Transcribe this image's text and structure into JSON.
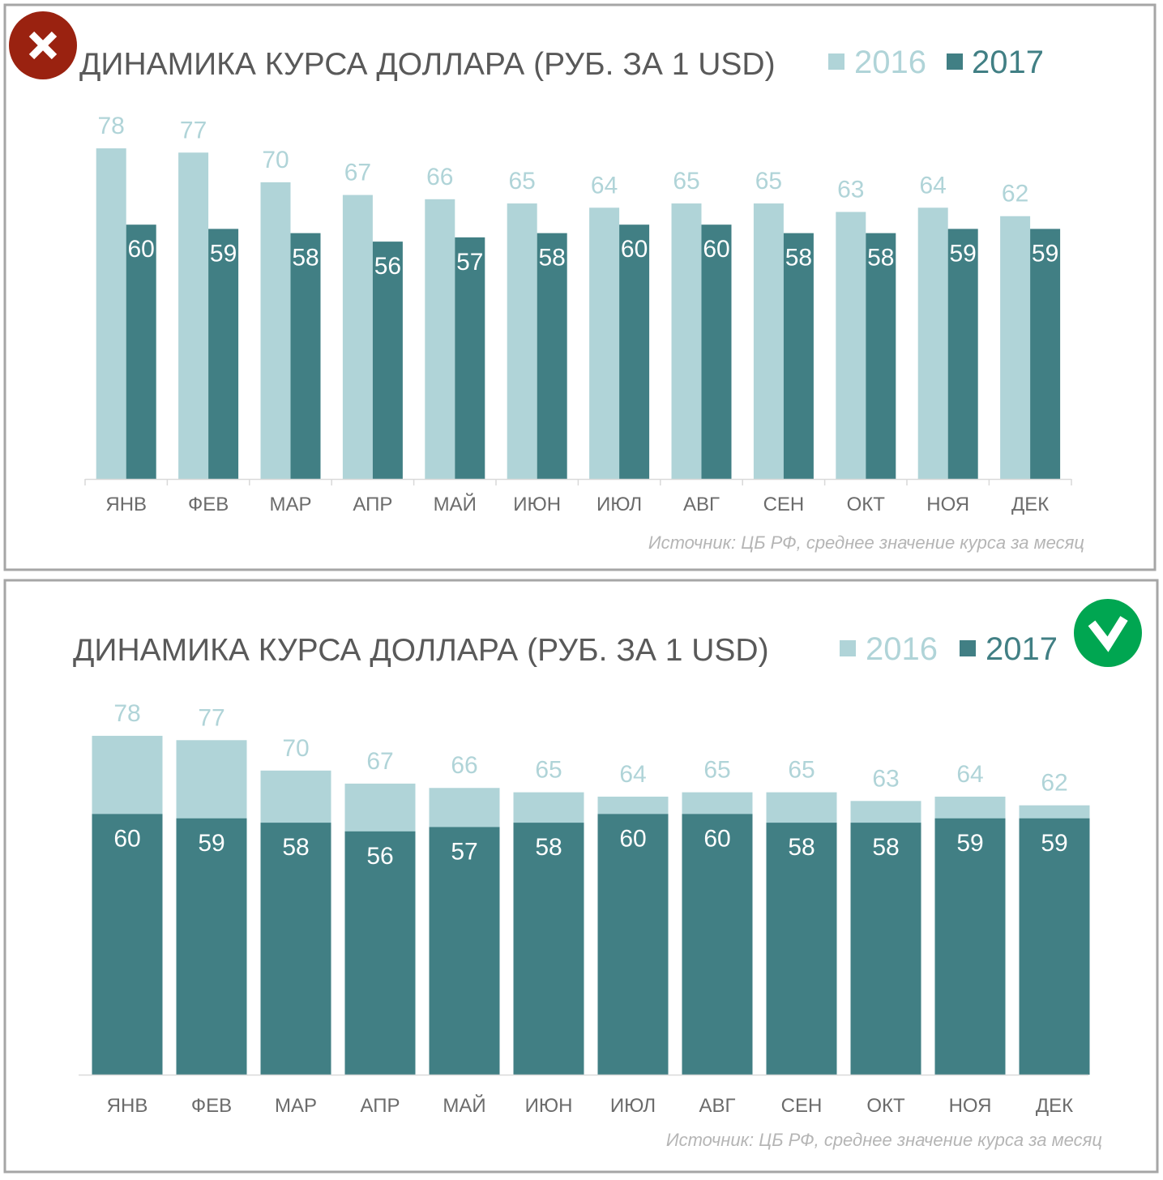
{
  "chart_data": [
    {
      "type": "bar",
      "variant": "grouped",
      "verdict_icon": "cross-icon",
      "verdict_color": "#9a2210",
      "title": "ДИНАМИКА КУРСА ДОЛЛАРА (РУБ. ЗА 1 USD)",
      "categories": [
        "ЯНВ",
        "ФЕВ",
        "МАР",
        "АПР",
        "МАЙ",
        "ИЮН",
        "ИЮЛ",
        "АВГ",
        "СЕН",
        "ОКТ",
        "НОЯ",
        "ДЕК"
      ],
      "series": [
        {
          "name": "2016",
          "color": "#b0d4d8",
          "values": [
            78,
            77,
            70,
            67,
            66,
            65,
            64,
            65,
            65,
            63,
            64,
            62
          ]
        },
        {
          "name": "2017",
          "color": "#417f84",
          "values": [
            60,
            59,
            58,
            56,
            57,
            58,
            60,
            60,
            58,
            58,
            59,
            59
          ]
        }
      ],
      "ylim": [
        0,
        80
      ],
      "grid": false,
      "legend": "top-right",
      "source": "Источник: ЦБ РФ, среднее значение курса за месяц"
    },
    {
      "type": "bar",
      "variant": "overlapped",
      "verdict_icon": "check-icon",
      "verdict_color": "#00a651",
      "title": "ДИНАМИКА КУРСА ДОЛЛАРА (РУБ. ЗА 1 USD)",
      "categories": [
        "ЯНВ",
        "ФЕВ",
        "МАР",
        "АПР",
        "МАЙ",
        "ИЮН",
        "ИЮЛ",
        "АВГ",
        "СЕН",
        "ОКТ",
        "НОЯ",
        "ДЕК"
      ],
      "series": [
        {
          "name": "2016",
          "color": "#b0d4d8",
          "values": [
            78,
            77,
            70,
            67,
            66,
            65,
            64,
            65,
            65,
            63,
            64,
            62
          ]
        },
        {
          "name": "2017",
          "color": "#417f84",
          "values": [
            60,
            59,
            58,
            56,
            57,
            58,
            60,
            60,
            58,
            58,
            59,
            59
          ]
        }
      ],
      "ylim": [
        0,
        80
      ],
      "grid": false,
      "legend": "top-right",
      "source": "Источник: ЦБ РФ, среднее значение курса за месяц"
    }
  ]
}
